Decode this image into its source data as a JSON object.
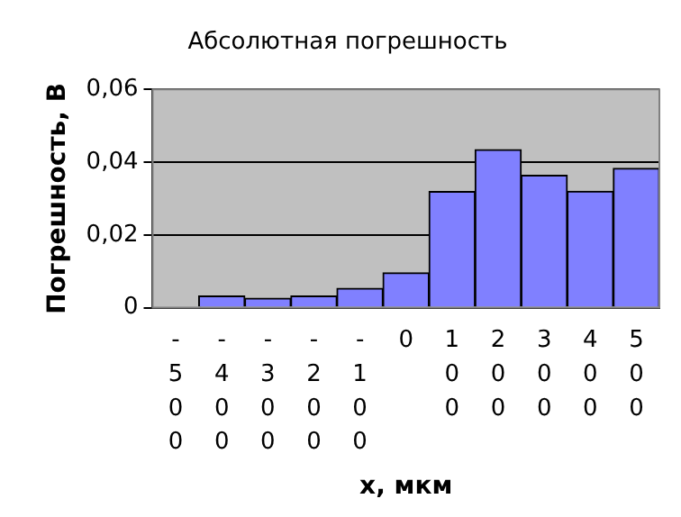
{
  "chart_data": {
    "type": "bar",
    "title": "Абсолютная погрешность",
    "xlabel": "x, мкм",
    "ylabel": "Погрешность, В",
    "categories": [
      "-500",
      "-400",
      "-300",
      "-200",
      "-100",
      "0",
      "100",
      "200",
      "300",
      "400",
      "500"
    ],
    "values": [
      0,
      0.0032,
      0.0026,
      0.0032,
      0.0053,
      0.0096,
      0.0319,
      0.0434,
      0.0364,
      0.032,
      0.0383
    ],
    "color": "#8080ff",
    "ylim": [
      0,
      0.06
    ],
    "yticks": [
      0,
      {
        "value": 0.02,
        "label": "0,02"
      },
      {
        "value": 0.04,
        "label": "0,04"
      },
      {
        "value": 0.06,
        "label": "0,06"
      }
    ],
    "grid": "y",
    "legend": false
  }
}
